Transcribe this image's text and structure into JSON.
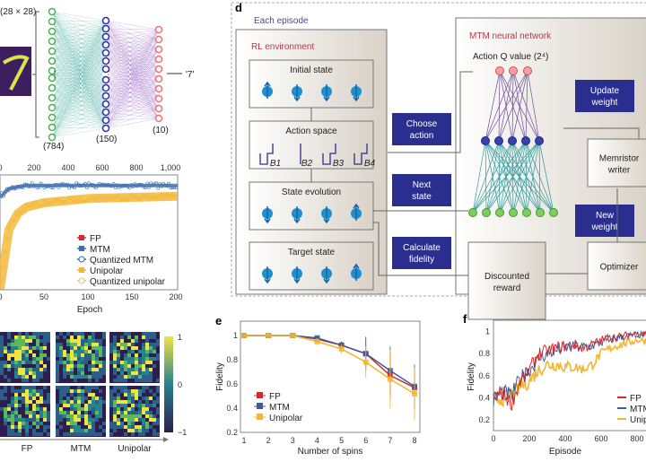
{
  "panel_a": {
    "input_label": "(28 × 28)",
    "layers": [
      "(784)",
      "(150)",
      "(10)"
    ],
    "output": "'7'",
    "colors": {
      "input": "#4caf50",
      "hidden": "#2b2f9e",
      "output": "#f07070"
    }
  },
  "panel_b": {
    "top_axis_ticks": [
      "0",
      "200",
      "400",
      "600",
      "800",
      "1,000"
    ],
    "bottom_axis_ticks": [
      "0",
      "50",
      "100",
      "150",
      "200"
    ],
    "xlabel": "Epoch",
    "legend": [
      "FP",
      "MTM",
      "Quantized MTM",
      "Unipolar",
      "Quantized unipolar"
    ]
  },
  "panel_c": {
    "columns": [
      "FP",
      "MTM",
      "Unipolar"
    ],
    "colorbar_ticks": [
      "1",
      "0",
      "−1"
    ]
  },
  "panel_d": {
    "label": "d",
    "episode": "Each episode",
    "rl_env": "RL environment",
    "initial_state": "Initial state",
    "action_space": "Action space",
    "actions": [
      "B1",
      "B2",
      "B3",
      "B4"
    ],
    "state_evolution": "State evolution",
    "target_state": "Target state",
    "choose_action": [
      "Choose",
      "action"
    ],
    "next_state": [
      "Next",
      "state"
    ],
    "calc_fidelity": [
      "Calculate",
      "fidelity"
    ],
    "mtm_nn": "MTM neural network",
    "q_value": "Action Q value (2⁴)",
    "update_weight": [
      "Update",
      "weight"
    ],
    "memristor_writer": [
      "Memristor",
      "writer"
    ],
    "new_weight": [
      "New",
      "weight"
    ],
    "discounted_reward": [
      "Discounted",
      "reward"
    ],
    "optimizer": "Optimizer",
    "colors": {
      "label_box": "#2a2f8f",
      "spin": "#1e90d0"
    }
  },
  "chart_data": [
    {
      "panel": "b",
      "type": "line",
      "xlabel": "Epoch",
      "x_bottom": [
        0,
        10,
        20,
        30,
        50,
        75,
        100,
        150,
        200
      ],
      "x_top_range": [
        0,
        1000
      ],
      "series": [
        {
          "name": "MTM",
          "values": [
            0.85,
            0.93,
            0.95,
            0.96,
            0.96,
            0.96,
            0.96,
            0.96,
            0.96
          ]
        },
        {
          "name": "Unipolar",
          "values": [
            0.0,
            0.55,
            0.7,
            0.76,
            0.8,
            0.82,
            0.84,
            0.85,
            0.86
          ]
        }
      ],
      "legend_position": "bottom-right"
    },
    {
      "panel": "e",
      "type": "line",
      "xlabel": "Number of spins",
      "ylabel": "Fidelity",
      "x": [
        1,
        2,
        3,
        4,
        5,
        6,
        7,
        8
      ],
      "xlim": [
        1,
        8
      ],
      "ylim": [
        0.2,
        1.05
      ],
      "yticks": [
        "0.2",
        "0.4",
        "0.6",
        "0.8",
        "1"
      ],
      "series": [
        {
          "name": "FP",
          "color": "#d62828",
          "values": [
            1,
            1,
            1,
            0.97,
            0.92,
            0.85,
            0.67,
            0.57
          ],
          "err": [
            0,
            0,
            0,
            0.02,
            0.03,
            0.12,
            0.2,
            0.18
          ]
        },
        {
          "name": "MTM",
          "color": "#3b5b9a",
          "values": [
            1,
            1,
            1,
            0.98,
            0.92,
            0.85,
            0.71,
            0.58
          ],
          "err": [
            0,
            0,
            0,
            0.02,
            0.03,
            0.14,
            0.2,
            0.18
          ]
        },
        {
          "name": "Unipolar",
          "color": "#f2b632",
          "values": [
            1,
            1,
            1,
            0.95,
            0.89,
            0.78,
            0.64,
            0.52
          ],
          "err": [
            0,
            0,
            0,
            0.03,
            0.04,
            0.13,
            0.24,
            0.22
          ]
        }
      ],
      "legend_position": "bottom-left"
    },
    {
      "panel": "f",
      "type": "line",
      "xlabel": "Episode",
      "ylabel": "Fidelity",
      "x": [
        0,
        50,
        100,
        150,
        200,
        250,
        300,
        350,
        400,
        450,
        500,
        550,
        600,
        650,
        700,
        750,
        800,
        850,
        900
      ],
      "xticks": [
        "0",
        "200",
        "400",
        "600",
        "800"
      ],
      "yticks": [
        "0.2",
        "0.4",
        "0.6",
        "0.8",
        "1"
      ],
      "ylim": [
        0.15,
        1.05
      ],
      "series": [
        {
          "name": "FP",
          "color": "#d62828",
          "values": [
            0.4,
            0.45,
            0.35,
            0.55,
            0.65,
            0.8,
            0.82,
            0.85,
            0.87,
            0.88,
            0.85,
            0.88,
            0.92,
            0.95,
            0.95,
            0.97,
            0.98,
            0.98,
            0.98
          ]
        },
        {
          "name": "MTM",
          "color": "#3b5b9a",
          "values": [
            0.38,
            0.45,
            0.42,
            0.58,
            0.65,
            0.75,
            0.8,
            0.83,
            0.85,
            0.86,
            0.86,
            0.87,
            0.9,
            0.93,
            0.95,
            0.96,
            0.97,
            0.97,
            0.97
          ]
        },
        {
          "name": "Unipolar",
          "color": "#f2b632",
          "values": [
            0.38,
            0.4,
            0.42,
            0.5,
            0.55,
            0.65,
            0.7,
            0.7,
            0.68,
            0.68,
            0.66,
            0.7,
            0.8,
            0.85,
            0.88,
            0.9,
            0.92,
            0.92,
            0.93
          ]
        }
      ],
      "legend_position": "bottom-right"
    }
  ],
  "labels": {
    "e": "e",
    "f": "f"
  }
}
